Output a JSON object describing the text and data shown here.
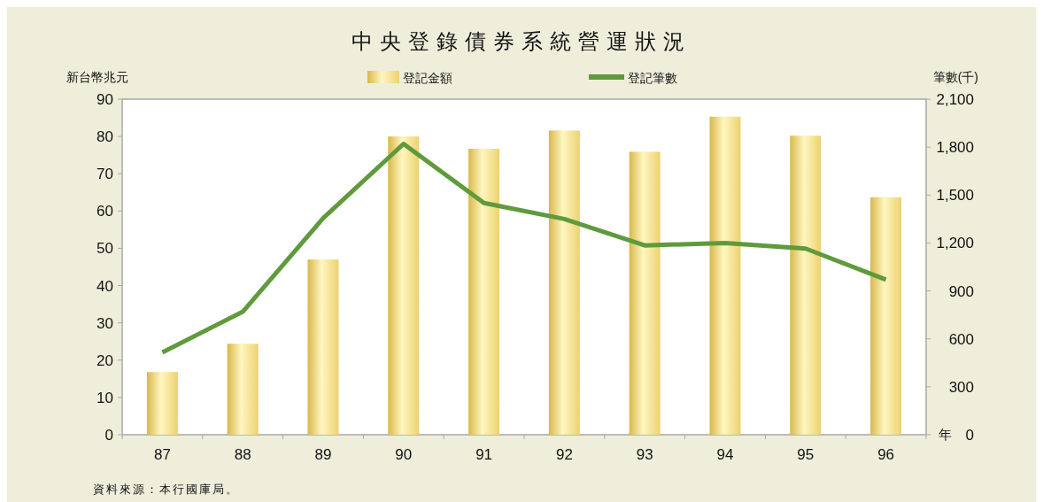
{
  "chart_data": {
    "type": "bar",
    "title": "中央登錄債券系統營運狀況",
    "xlabel": "年",
    "ylabel": "新台幣兆元",
    "y2label": "筆數(千)",
    "annotations": [
      "資料來源：本行國庫局。"
    ],
    "categories": [
      "87",
      "88",
      "89",
      "90",
      "91",
      "92",
      "93",
      "94",
      "95",
      "96"
    ],
    "series": [
      {
        "name": "登記金額",
        "color": "#ecd270",
        "values": [
          16.8,
          24.4,
          47,
          80,
          76.7,
          81.6,
          75.9,
          85.3,
          80.2,
          63.7
        ]
      },
      {
        "name": "登記筆數",
        "type": "line",
        "axis": "y2",
        "color": "#5f9a3c",
        "values": [
          515,
          770,
          1355,
          1820,
          1450,
          1350,
          1185,
          1200,
          1165,
          970
        ]
      }
    ],
    "ylim": [
      0,
      90
    ],
    "yticks": [
      0,
      10,
      20,
      30,
      40,
      50,
      60,
      70,
      80,
      90
    ],
    "y2lim": [
      0,
      2100
    ],
    "y2ticks": [
      0,
      300,
      600,
      900,
      {
        "value": 1200,
        "label": "1,200"
      },
      {
        "value": 1500,
        "label": "1,500"
      },
      {
        "value": 1800,
        "label": "1,800"
      },
      {
        "value": 2100,
        "label": "2,100"
      }
    ],
    "legend": "top"
  }
}
